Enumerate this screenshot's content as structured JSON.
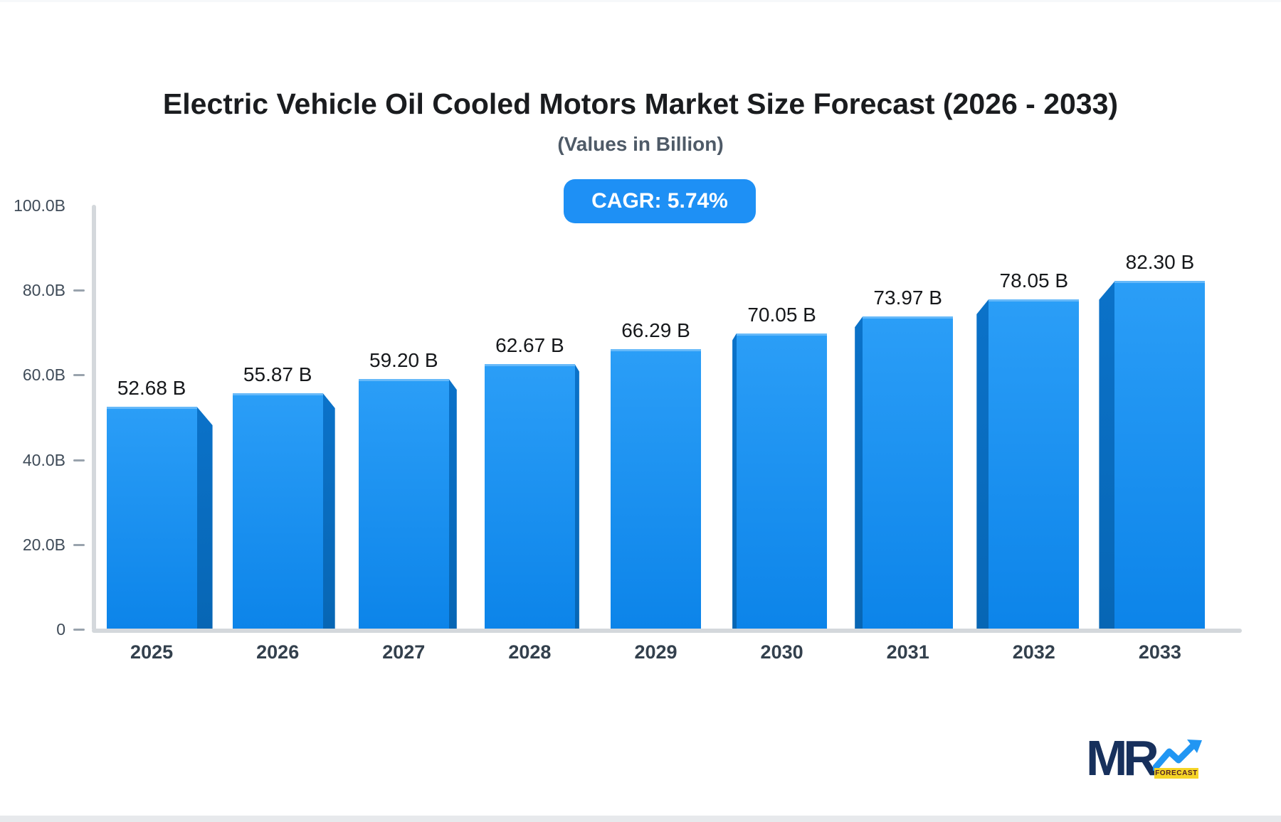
{
  "header": {
    "title": "Electric Vehicle Oil Cooled Motors Market Size Forecast (2026 - 2033)",
    "subtitle": "(Values in Billion)",
    "cagr_badge": "CAGR: 5.74%"
  },
  "chart_data": {
    "type": "bar",
    "title": "Electric Vehicle Oil Cooled Motors Market Size Forecast (2026 - 2033)",
    "subtitle": "(Values in Billion)",
    "cagr": "5.74%",
    "categories": [
      "2025",
      "2026",
      "2027",
      "2028",
      "2029",
      "2030",
      "2031",
      "2032",
      "2033"
    ],
    "values": [
      52.68,
      55.87,
      59.2,
      62.67,
      66.29,
      70.05,
      73.97,
      78.05,
      82.3
    ],
    "value_labels": [
      "52.68 B",
      "55.87 B",
      "59.20 B",
      "62.67 B",
      "66.29 B",
      "70.05 B",
      "73.97 B",
      "78.05 B",
      "82.30 B"
    ],
    "unit": "Billion",
    "xlabel": "",
    "ylabel": "",
    "ylim": [
      0,
      100
    ],
    "yticks": [
      {
        "value": 100,
        "label": "100.0B",
        "tick_mark": false
      },
      {
        "value": 80,
        "label": "80.0B",
        "tick_mark": true
      },
      {
        "value": 60,
        "label": "60.0B",
        "tick_mark": true
      },
      {
        "value": 40,
        "label": "40.0B",
        "tick_mark": true
      },
      {
        "value": 20,
        "label": "20.0B",
        "tick_mark": true
      },
      {
        "value": 0,
        "label": "0",
        "tick_mark": true
      }
    ],
    "grid": false,
    "legend": null,
    "bar_style": "3d-perspective-center-vanishing-point"
  },
  "logo": {
    "text": "MR",
    "tag": "FORECAST",
    "icon": "trend-arrow-icon"
  },
  "colors": {
    "title": "#1a1c1f",
    "subtitle": "#4e5a67",
    "badge_bg": "#1e90f5",
    "badge_text": "#ffffff",
    "bar_front_top": "#2b9ef7",
    "bar_front_bottom": "#0c84e9",
    "bar_side_top": "#0b72c9",
    "bar_side_bottom": "#0766b4",
    "axis_line": "#d4d8dc",
    "tick_mark": "#99a3ad",
    "tick_label": "#3f4b58",
    "x_label": "#33404d",
    "value_label": "#16181b",
    "logo_navy": "#17305c",
    "logo_blue": "#2196f3",
    "logo_yellow": "#f5d426",
    "logo_tag_text": "#4d1f24",
    "strip_top": "#f6f8fa",
    "strip_bottom": "#e7e9ec"
  }
}
